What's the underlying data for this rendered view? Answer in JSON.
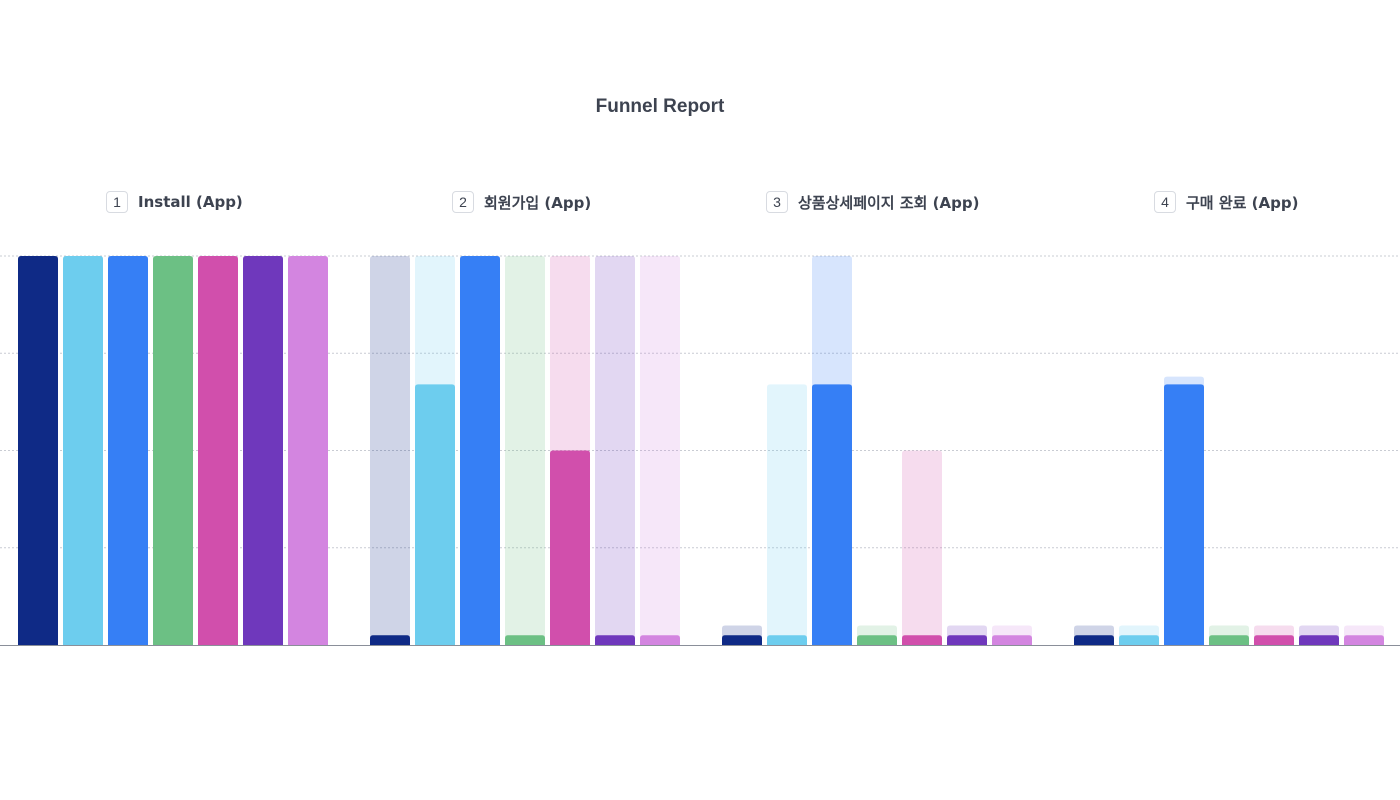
{
  "chart_data": {
    "type": "bar",
    "title": "Funnel Report",
    "categories": [
      {
        "index": "1",
        "label": "Install (App)"
      },
      {
        "index": "2",
        "label": "회원가입 (App)"
      },
      {
        "index": "3",
        "label": "상품상세페이지 조회 (App)"
      },
      {
        "index": "4",
        "label": "구매 완료 (App)"
      }
    ],
    "ylim": [
      0,
      100
    ],
    "grid": true,
    "series": [
      {
        "color": "#0f2a86",
        "values": [
          100,
          2.5,
          2.5,
          2.5
        ],
        "previous": [
          null,
          100,
          5,
          5
        ]
      },
      {
        "color": "#6dcdee",
        "values": [
          100,
          67,
          2.5,
          2.5
        ],
        "previous": [
          null,
          100,
          67,
          5
        ]
      },
      {
        "color": "#367ff5",
        "values": [
          100,
          100,
          67,
          67
        ],
        "previous": [
          null,
          100,
          100,
          69
        ]
      },
      {
        "color": "#6cc084",
        "values": [
          100,
          2.5,
          2.5,
          2.5
        ],
        "previous": [
          null,
          100,
          5,
          5
        ]
      },
      {
        "color": "#d14fac",
        "values": [
          100,
          50,
          2.5,
          2.5
        ],
        "previous": [
          null,
          100,
          50,
          5
        ]
      },
      {
        "color": "#6f38bc",
        "values": [
          100,
          2.5,
          2.5,
          2.5
        ],
        "previous": [
          null,
          100,
          5,
          5
        ]
      },
      {
        "color": "#d385e0",
        "values": [
          100,
          2.5,
          2.5,
          2.5
        ],
        "previous": [
          null,
          100,
          5,
          5
        ]
      }
    ]
  }
}
